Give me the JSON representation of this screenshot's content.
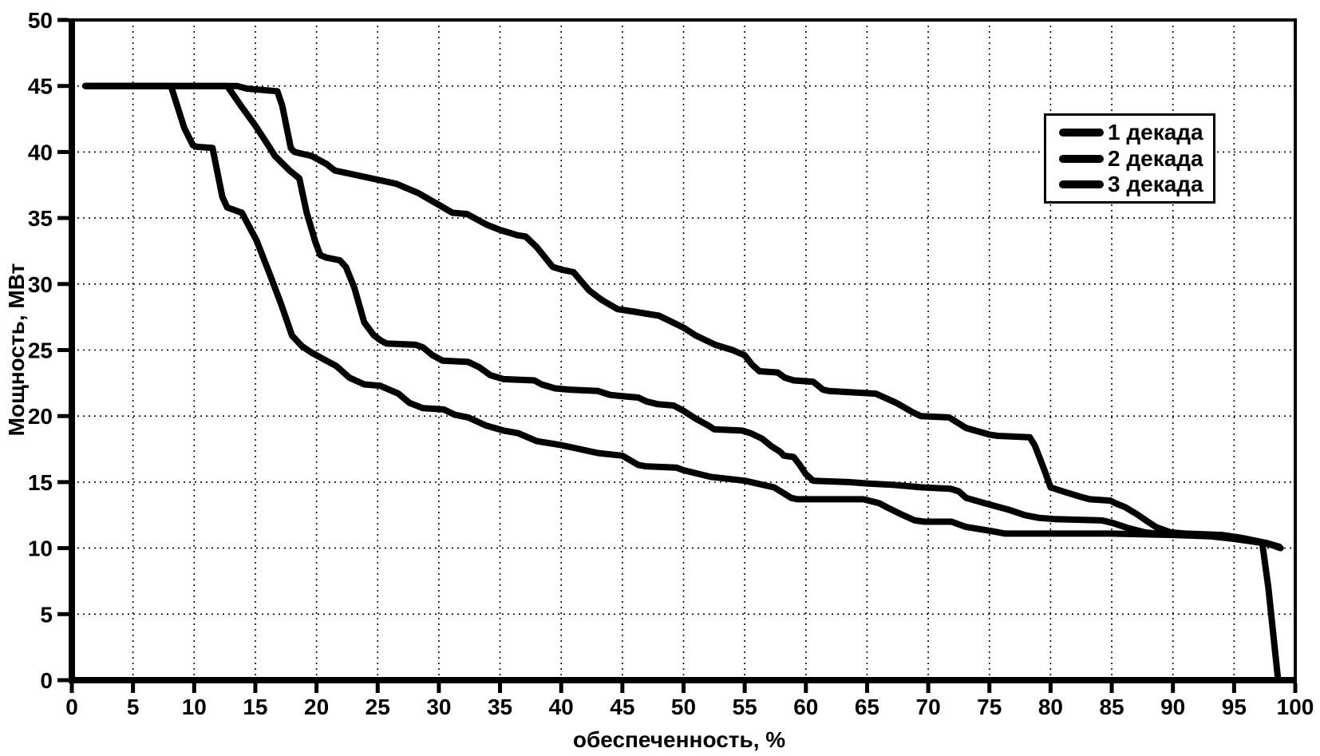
{
  "legend": {
    "items": [
      "1 декада",
      "2 декада",
      "3 декада"
    ]
  },
  "chart_data": {
    "type": "line",
    "title": "",
    "xlabel": "обеспеченность, %",
    "ylabel": "Мощность, МВт",
    "xlim": [
      0,
      100
    ],
    "ylim": [
      0,
      50
    ],
    "xticks": [
      0,
      5,
      10,
      15,
      20,
      25,
      30,
      35,
      40,
      45,
      50,
      55,
      60,
      65,
      70,
      75,
      80,
      85,
      90,
      95,
      100
    ],
    "yticks": [
      0,
      5,
      10,
      15,
      20,
      25,
      30,
      35,
      40,
      45,
      50
    ],
    "grid": "dashed-both-axes",
    "legend_position": "inside-upper-right",
    "line_color": "#000000",
    "background": "#ffffff",
    "series": [
      {
        "name": "1 декада",
        "points": [
          [
            1.1,
            45
          ],
          [
            13.5,
            45
          ],
          [
            14.3,
            44.8
          ],
          [
            16.8,
            44.6
          ],
          [
            17.2,
            43.5
          ],
          [
            17.9,
            40.3
          ],
          [
            18.2,
            40.0
          ],
          [
            19.6,
            39.7
          ],
          [
            20.8,
            39.1
          ],
          [
            21.5,
            38.6
          ],
          [
            23,
            38.3
          ],
          [
            25,
            37.9
          ],
          [
            26.5,
            37.6
          ],
          [
            28.3,
            36.9
          ],
          [
            30,
            36.0
          ],
          [
            31.1,
            35.4
          ],
          [
            32.3,
            35.3
          ],
          [
            33.9,
            34.5
          ],
          [
            35,
            34.1
          ],
          [
            36.4,
            33.7
          ],
          [
            37.1,
            33.6
          ],
          [
            38,
            32.8
          ],
          [
            39.3,
            31.3
          ],
          [
            40,
            31.1
          ],
          [
            41,
            30.9
          ],
          [
            42.3,
            29.5
          ],
          [
            43.3,
            28.8
          ],
          [
            44.6,
            28.1
          ],
          [
            46,
            27.9
          ],
          [
            48,
            27.6
          ],
          [
            50,
            26.7
          ],
          [
            51,
            26.1
          ],
          [
            52.6,
            25.4
          ],
          [
            54,
            25.0
          ],
          [
            55,
            24.6
          ],
          [
            55.6,
            23.9
          ],
          [
            56.2,
            23.4
          ],
          [
            57.7,
            23.3
          ],
          [
            58.3,
            22.9
          ],
          [
            59,
            22.7
          ],
          [
            60.6,
            22.6
          ],
          [
            61.4,
            22.0
          ],
          [
            61.9,
            21.9
          ],
          [
            65.7,
            21.7
          ],
          [
            66.2,
            21.5
          ],
          [
            67.4,
            21.0
          ],
          [
            68.7,
            20.3
          ],
          [
            69.4,
            20.0
          ],
          [
            71.7,
            19.9
          ],
          [
            72.4,
            19.5
          ],
          [
            73.1,
            19.1
          ],
          [
            75,
            18.6
          ],
          [
            75.7,
            18.5
          ],
          [
            78.3,
            18.4
          ],
          [
            78.7,
            17.8
          ],
          [
            79.5,
            15.9
          ],
          [
            80,
            14.6
          ],
          [
            81,
            14.3
          ],
          [
            82.4,
            13.9
          ],
          [
            83.2,
            13.7
          ],
          [
            84.9,
            13.6
          ],
          [
            85.3,
            13.4
          ],
          [
            86.1,
            13.1
          ],
          [
            87,
            12.6
          ],
          [
            87.8,
            12.1
          ],
          [
            88.6,
            11.6
          ],
          [
            89.8,
            11.2
          ],
          [
            91,
            11.1
          ],
          [
            94,
            11.0
          ],
          [
            95.5,
            10.8
          ],
          [
            97,
            10.5
          ],
          [
            98.2,
            10.2
          ],
          [
            98.8,
            10.0
          ]
        ]
      },
      {
        "name": "2 декада",
        "points": [
          [
            1.1,
            45
          ],
          [
            12.7,
            45
          ],
          [
            13.9,
            43.4
          ],
          [
            15,
            42.0
          ],
          [
            16.2,
            40.3
          ],
          [
            16.6,
            39.7
          ],
          [
            17.8,
            38.6
          ],
          [
            18.6,
            38.0
          ],
          [
            19.2,
            35.4
          ],
          [
            19.9,
            33.2
          ],
          [
            20.3,
            32.2
          ],
          [
            20.8,
            32.0
          ],
          [
            21.9,
            31.8
          ],
          [
            22.4,
            31.3
          ],
          [
            23.1,
            29.7
          ],
          [
            23.9,
            27.1
          ],
          [
            24.7,
            26.1
          ],
          [
            25.3,
            25.7
          ],
          [
            25.7,
            25.5
          ],
          [
            28.1,
            25.4
          ],
          [
            28.7,
            25.2
          ],
          [
            29.5,
            24.6
          ],
          [
            30.3,
            24.2
          ],
          [
            32.4,
            24.1
          ],
          [
            33.3,
            23.7
          ],
          [
            34.2,
            23.1
          ],
          [
            35.3,
            22.8
          ],
          [
            37.8,
            22.7
          ],
          [
            38.4,
            22.4
          ],
          [
            39.5,
            22.1
          ],
          [
            40.7,
            22.0
          ],
          [
            43,
            21.9
          ],
          [
            44,
            21.6
          ],
          [
            45.1,
            21.5
          ],
          [
            46.3,
            21.4
          ],
          [
            47,
            21.1
          ],
          [
            47.9,
            20.9
          ],
          [
            49.2,
            20.8
          ],
          [
            50,
            20.4
          ],
          [
            51,
            19.8
          ],
          [
            52,
            19.3
          ],
          [
            52.5,
            19.0
          ],
          [
            54.8,
            18.9
          ],
          [
            55.5,
            18.7
          ],
          [
            56.4,
            18.3
          ],
          [
            57.2,
            17.7
          ],
          [
            57.9,
            17.3
          ],
          [
            58.2,
            17.0
          ],
          [
            59,
            16.9
          ],
          [
            59.5,
            16.3
          ],
          [
            60,
            15.6
          ],
          [
            60.6,
            15.1
          ],
          [
            63.5,
            15.0
          ],
          [
            65,
            14.9
          ],
          [
            67,
            14.8
          ],
          [
            69.5,
            14.6
          ],
          [
            71.8,
            14.5
          ],
          [
            72.5,
            14.3
          ],
          [
            73.1,
            13.8
          ],
          [
            75,
            13.3
          ],
          [
            76.6,
            12.9
          ],
          [
            77.9,
            12.5
          ],
          [
            79,
            12.3
          ],
          [
            80.3,
            12.2
          ],
          [
            84.2,
            12.1
          ],
          [
            85.1,
            11.9
          ],
          [
            86.4,
            11.5
          ],
          [
            87.7,
            11.2
          ],
          [
            88.6,
            11.1
          ],
          [
            91,
            11.0
          ],
          [
            94,
            10.9
          ],
          [
            96,
            10.7
          ],
          [
            97.6,
            10.4
          ],
          [
            98.7,
            10.1
          ]
        ]
      },
      {
        "name": "3 декада",
        "points": [
          [
            1.1,
            45
          ],
          [
            8.1,
            45
          ],
          [
            9.2,
            41.8
          ],
          [
            9.9,
            40.5
          ],
          [
            10.2,
            40.4
          ],
          [
            11.5,
            40.3
          ],
          [
            12.3,
            36.6
          ],
          [
            12.7,
            35.8
          ],
          [
            13.9,
            35.4
          ],
          [
            15.1,
            33.3
          ],
          [
            16.2,
            30.7
          ],
          [
            17.1,
            28.5
          ],
          [
            18,
            26.1
          ],
          [
            18.8,
            25.3
          ],
          [
            19.6,
            24.8
          ],
          [
            21,
            24.1
          ],
          [
            21.6,
            23.8
          ],
          [
            22.7,
            22.9
          ],
          [
            23.9,
            22.4
          ],
          [
            25.2,
            22.3
          ],
          [
            26.7,
            21.7
          ],
          [
            27.6,
            21.0
          ],
          [
            28.7,
            20.6
          ],
          [
            30.4,
            20.5
          ],
          [
            31.3,
            20.1
          ],
          [
            32.4,
            19.9
          ],
          [
            33.8,
            19.3
          ],
          [
            35.3,
            18.9
          ],
          [
            36.5,
            18.7
          ],
          [
            38,
            18.1
          ],
          [
            40,
            17.8
          ],
          [
            41,
            17.6
          ],
          [
            43,
            17.2
          ],
          [
            45,
            17.0
          ],
          [
            46.3,
            16.3
          ],
          [
            46.9,
            16.2
          ],
          [
            49.4,
            16.1
          ],
          [
            50,
            15.9
          ],
          [
            52.2,
            15.4
          ],
          [
            55,
            15.1
          ],
          [
            57.4,
            14.6
          ],
          [
            58.1,
            14.2
          ],
          [
            58.8,
            13.8
          ],
          [
            59.3,
            13.7
          ],
          [
            64.7,
            13.7
          ],
          [
            66,
            13.4
          ],
          [
            66.6,
            13.1
          ],
          [
            67.7,
            12.6
          ],
          [
            68.9,
            12.1
          ],
          [
            69.7,
            12.0
          ],
          [
            71.9,
            12.0
          ],
          [
            73.1,
            11.6
          ],
          [
            75.1,
            11.3
          ],
          [
            76.3,
            11.1
          ],
          [
            80,
            11.1
          ],
          [
            85,
            11.1
          ],
          [
            90,
            11.0
          ],
          [
            93,
            10.9
          ],
          [
            95,
            10.7
          ],
          [
            96.5,
            10.5
          ],
          [
            97.3,
            10.4
          ],
          [
            97.8,
            7.0
          ],
          [
            98.6,
            0.0
          ]
        ]
      }
    ]
  }
}
